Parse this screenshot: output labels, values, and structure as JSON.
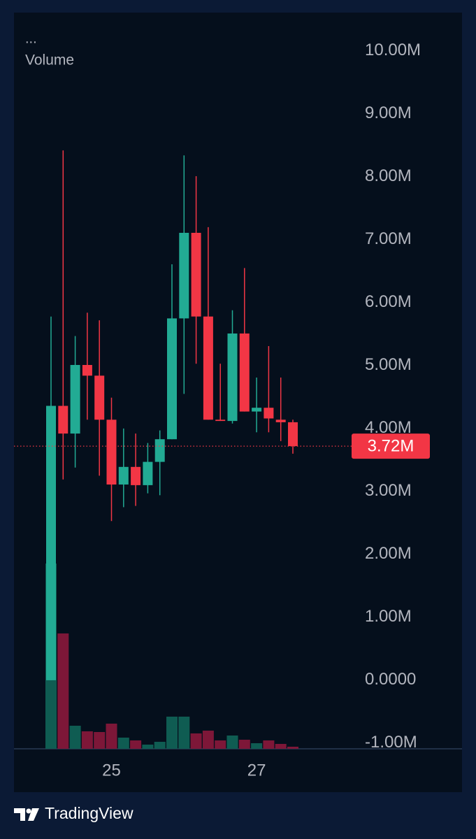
{
  "chart_data": {
    "type": "candlestick",
    "menu": "...",
    "indicator_label": "Volume",
    "brand": "TradingView",
    "categories": [
      null,
      null,
      null,
      null,
      null,
      "25",
      null,
      null,
      null,
      null,
      null,
      null,
      null,
      null,
      null,
      null,
      null,
      "27",
      null,
      null,
      null
    ],
    "series": [
      {
        "up_color": "#22ab94",
        "down_color": "#f23645",
        "up_volume_color": "#0f5c52",
        "down_volume_color": "#7d1738",
        "open": [
          0.0,
          4.36,
          3.92,
          5.01,
          4.84,
          4.14,
          3.11,
          3.39,
          3.1,
          3.47,
          3.83,
          5.75,
          7.11,
          5.78,
          4.14,
          4.12,
          5.51,
          4.27,
          4.33,
          4.14,
          4.1
        ],
        "high": [
          5.78,
          8.42,
          5.47,
          5.84,
          5.72,
          4.49,
          4.0,
          3.92,
          3.77,
          3.97,
          6.61,
          8.34,
          8.01,
          7.2,
          5.03,
          5.88,
          6.55,
          4.81,
          5.31,
          4.81,
          4.14
        ],
        "low": [
          0.0,
          3.19,
          3.38,
          4.14,
          3.25,
          2.53,
          2.75,
          2.77,
          2.97,
          2.94,
          3.83,
          4.55,
          5.03,
          4.14,
          4.12,
          4.08,
          4.27,
          3.94,
          3.94,
          3.8,
          3.6
        ],
        "close": [
          4.36,
          3.92,
          5.01,
          4.84,
          4.14,
          3.11,
          3.39,
          3.1,
          3.47,
          3.83,
          5.75,
          7.11,
          5.78,
          4.14,
          4.12,
          5.51,
          4.27,
          4.33,
          4.16,
          4.1,
          3.72
        ],
        "volume": [
          265,
          165,
          33,
          25,
          24,
          36,
          16,
          12,
          6,
          10,
          46,
          46,
          22,
          26,
          12,
          19,
          13,
          8,
          12,
          7,
          3
        ]
      }
    ],
    "last_price": {
      "value": 3.72,
      "label": "3.72M",
      "color": "#f23645"
    },
    "ylim": [
      -1.09,
      10.61
    ],
    "yticks": [
      {
        "value": -1,
        "label": "-1.00M"
      },
      {
        "value": 0,
        "label": "0.0000"
      },
      {
        "value": 1,
        "label": "1.00M"
      },
      {
        "value": 2,
        "label": "2.00M"
      },
      {
        "value": 3,
        "label": "3.00M"
      },
      {
        "value": 4,
        "label": "4.00M"
      },
      {
        "value": 5,
        "label": "5.00M"
      },
      {
        "value": 6,
        "label": "6.00M"
      },
      {
        "value": 7,
        "label": "7.00M"
      },
      {
        "value": 8,
        "label": "8.00M"
      },
      {
        "value": 9,
        "label": "9.00M"
      },
      {
        "value": 10,
        "label": "10.00M"
      }
    ],
    "grid": false
  }
}
